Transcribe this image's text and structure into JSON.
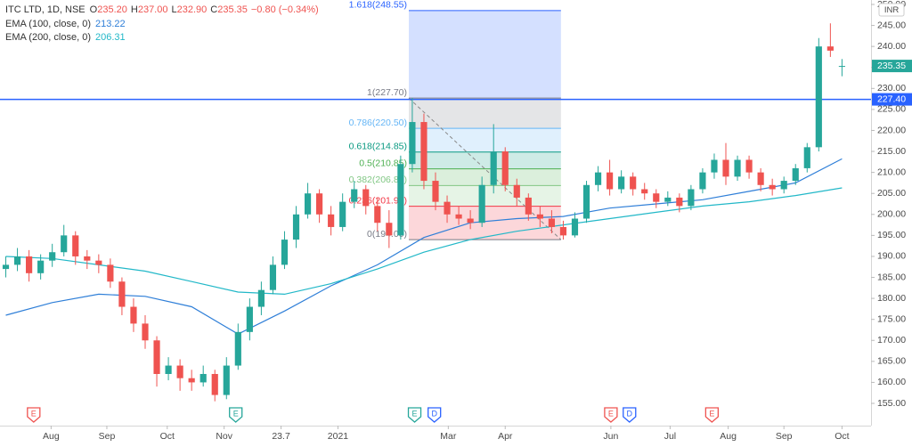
{
  "chart_data": {
    "type": "candlestick",
    "header": {
      "symbol": "ITC LTD, 1D, NSE",
      "ohlc": [
        {
          "label": "O",
          "value": "235.20"
        },
        {
          "label": "H",
          "value": "237.00"
        },
        {
          "label": "L",
          "value": "232.90"
        },
        {
          "label": "C",
          "value": "235.35"
        }
      ],
      "change": "−0.80 (−0.34%)"
    },
    "currency": "INR",
    "up_color": "#26a69a",
    "down_color": "#ef5350",
    "x": [
      0,
      1,
      2,
      3,
      4,
      5,
      6,
      7,
      8,
      9,
      10,
      11,
      12,
      13,
      14,
      15,
      16,
      17,
      18,
      19,
      20,
      21,
      22,
      23,
      24,
      25,
      26,
      27,
      28,
      29,
      30,
      31,
      32,
      33,
      34,
      35,
      36,
      37,
      38,
      39,
      40,
      41,
      42,
      43,
      44,
      45,
      46,
      47,
      48,
      49,
      50,
      51,
      52,
      53,
      54,
      55,
      56,
      57,
      58,
      59,
      60,
      61,
      62,
      63,
      64,
      65,
      66,
      67,
      68,
      69,
      70,
      71,
      72
    ],
    "open": [
      187,
      188,
      190,
      186,
      189,
      191,
      195,
      190,
      189,
      188,
      184,
      178,
      174,
      170,
      162,
      164,
      161,
      160,
      162,
      157,
      164,
      172,
      178,
      182,
      188,
      194,
      200,
      205,
      200,
      197,
      203,
      206,
      202,
      198,
      195,
      212,
      222,
      208,
      203,
      200,
      199,
      198,
      207,
      215,
      207,
      204,
      200,
      199,
      197,
      195,
      199,
      207,
      210,
      206,
      209,
      206,
      205,
      203,
      204,
      202,
      206,
      210,
      213,
      209,
      213,
      210,
      207,
      206,
      208,
      211,
      216,
      240,
      235.2
    ],
    "high": [
      190,
      192,
      191.5,
      190.5,
      193,
      197.5,
      196,
      191.5,
      190.5,
      189.5,
      185,
      180,
      176,
      171,
      166,
      165.5,
      163,
      164,
      163,
      166,
      174,
      180,
      184,
      190,
      196,
      202,
      207.5,
      206,
      202,
      205,
      208,
      207,
      204,
      201,
      214,
      227.7,
      224,
      210,
      204.5,
      202,
      201,
      209,
      221.5,
      216,
      208.5,
      205,
      202,
      201,
      198.5,
      200.5,
      208,
      211.5,
      213,
      210.5,
      210,
      207.5,
      206,
      205.5,
      205,
      207,
      211,
      214.5,
      217,
      214,
      214,
      211,
      208.5,
      209,
      212,
      217,
      242,
      245.5,
      237
    ],
    "low": [
      185,
      186.5,
      184,
      184.5,
      187.5,
      190,
      188,
      187,
      186,
      182.5,
      176,
      172,
      168,
      159,
      160.5,
      158,
      158,
      159,
      155.5,
      156,
      163,
      170,
      176,
      181,
      187,
      192,
      199,
      198,
      195,
      196,
      201.5,
      200,
      196,
      192,
      194,
      210,
      206,
      201,
      198,
      197.5,
      196.5,
      197,
      205,
      205.5,
      202,
      198.5,
      197,
      195.5,
      194,
      194.5,
      198,
      205.5,
      204.5,
      205,
      204.5,
      203.5,
      201.5,
      202,
      200.5,
      201,
      205,
      208.5,
      207,
      208,
      208.5,
      205.5,
      204.5,
      205,
      207,
      210,
      215,
      237.5,
      232.9
    ],
    "close": [
      188,
      190,
      186,
      189,
      191,
      195,
      190,
      189,
      188,
      184,
      178,
      174,
      170,
      162,
      164,
      161,
      160,
      162,
      157,
      164,
      172,
      178,
      182,
      188,
      194,
      200,
      205,
      200,
      197,
      203,
      206,
      202,
      198,
      195,
      212,
      222,
      208,
      203,
      200,
      199,
      198,
      207,
      215,
      207,
      204,
      200,
      199,
      197,
      195,
      199,
      207,
      210,
      206,
      209,
      206,
      205,
      203,
      204,
      202,
      206,
      210,
      213,
      209,
      213,
      210,
      207,
      206,
      208,
      211,
      216,
      240,
      239,
      235.35
    ],
    "series": [
      {
        "name": "EMA (100, close, 0)",
        "color": "#2f7fd8",
        "x": [
          0,
          4,
          8,
          12,
          16,
          20,
          24,
          28,
          32,
          36,
          40,
          44,
          48,
          52,
          56,
          60,
          64,
          68,
          72
        ],
        "values": [
          176,
          179,
          181,
          180.5,
          178,
          171.5,
          177,
          183,
          188,
          194.5,
          198,
          199,
          199.5,
          201.5,
          202.5,
          203.5,
          205.5,
          207.5,
          213.22
        ]
      },
      {
        "name": "EMA (200, close, 0)",
        "color": "#22b8c8",
        "x": [
          0,
          4,
          8,
          12,
          16,
          20,
          24,
          28,
          32,
          36,
          40,
          44,
          48,
          52,
          56,
          60,
          64,
          68,
          72
        ],
        "values": [
          190,
          189.5,
          188,
          186.5,
          184,
          181.5,
          181,
          183.5,
          187,
          191,
          194,
          196,
          197.5,
          199,
          200.5,
          202,
          203,
          204.5,
          206.31
        ]
      }
    ],
    "fib_x": [
      34.7,
      47.8
    ],
    "fib_levels": [
      {
        "value": 248.55,
        "label": "1.618(248.55)",
        "color": "#2962ff"
      },
      {
        "value": 227.7,
        "label": "1(227.70)",
        "color": "#787b86"
      },
      {
        "value": 220.5,
        "label": "0.786(220.50)",
        "color": "#64b5f6"
      },
      {
        "value": 214.85,
        "label": "0.618(214.85)",
        "color": "#089981"
      },
      {
        "value": 210.85,
        "label": "0.5(210.85)",
        "color": "#4caf50"
      },
      {
        "value": 206.87,
        "label": "0.382(206.87)",
        "color": "#81c784"
      },
      {
        "value": 201.95,
        "label": "0.236(201.95)",
        "color": "#f23645"
      },
      {
        "value": 194,
        "label": "0(194.00)",
        "color": "#787b86"
      }
    ],
    "hline": {
      "value": 227.4,
      "label": "227.40",
      "color": "#2962ff"
    },
    "events": [
      {
        "x": 2.4,
        "label": "E",
        "color": "#ef5350"
      },
      {
        "x": 19.8,
        "label": "E",
        "color": "#26a69a"
      },
      {
        "x": 35.2,
        "label": "E",
        "color": "#26a69a"
      },
      {
        "x": 36.9,
        "label": "D",
        "color": "#2962ff"
      },
      {
        "x": 52.1,
        "label": "E",
        "color": "#ef5350"
      },
      {
        "x": 53.7,
        "label": "D",
        "color": "#2962ff"
      },
      {
        "x": 60.8,
        "label": "E",
        "color": "#ef5350"
      }
    ],
    "xlim": [
      -0.5,
      74.5
    ],
    "xticks": [
      {
        "value": 3.9,
        "label": "Aug"
      },
      {
        "value": 8.7,
        "label": "Sep"
      },
      {
        "value": 13.9,
        "label": "Oct"
      },
      {
        "value": 18.8,
        "label": "Nov"
      },
      23.7,
      {
        "value": 28.6,
        "label": "2021"
      },
      {
        "value": 38.1,
        "label": "Mar"
      },
      {
        "value": 43.0,
        "label": "Apr"
      },
      {
        "value": 52.1,
        "label": "Jun"
      },
      {
        "value": 57.2,
        "label": "Jul"
      },
      {
        "value": 62.2,
        "label": "Aug"
      },
      {
        "value": 67.0,
        "label": "Sep"
      },
      {
        "value": 72.0,
        "label": "Oct"
      }
    ],
    "ylim": [
      149.7,
      251.06
    ],
    "yticks": [
      {
        "value": 155,
        "label": "155.00"
      },
      {
        "value": 160,
        "label": "160.00"
      },
      {
        "value": 165,
        "label": "165.00"
      },
      {
        "value": 170,
        "label": "170.00"
      },
      {
        "value": 175,
        "label": "175.00"
      },
      {
        "value": 180,
        "label": "180.00"
      },
      {
        "value": 185,
        "label": "185.00"
      },
      {
        "value": 190,
        "label": "190.00"
      },
      {
        "value": 195,
        "label": "195.00"
      },
      {
        "value": 200,
        "label": "200.00"
      },
      {
        "value": 205,
        "label": "205.00"
      },
      {
        "value": 210,
        "label": "210.00"
      },
      {
        "value": 215,
        "label": "215.00"
      },
      {
        "value": 220,
        "label": "220.00"
      },
      {
        "value": 225,
        "label": "225.00"
      },
      {
        "value": 230,
        "label": "230.00"
      },
      {
        "value": 235,
        "label": "235.00"
      },
      {
        "value": 240,
        "label": "240.00"
      },
      {
        "value": 245,
        "label": "245.00"
      },
      {
        "value": 250,
        "label": "250.00"
      }
    ]
  }
}
